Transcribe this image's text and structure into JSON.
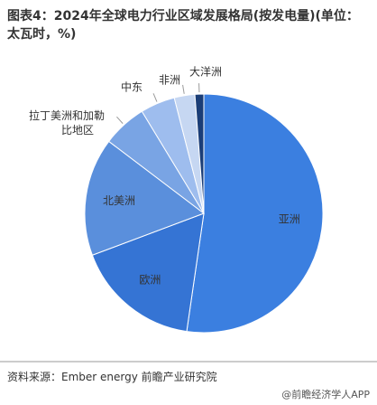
{
  "chart_data": {
    "type": "pie",
    "title": "图表4：2024年全球电力行业区域发展格局(按发电量)(单位：太瓦时，%)",
    "categories": [
      "亚洲",
      "欧洲",
      "北美洲",
      "拉丁美洲和加勒比地区",
      "中东",
      "非洲",
      "大洋洲"
    ],
    "values": [
      52.3,
      17,
      16,
      6,
      4.7,
      2.8,
      1.2
    ],
    "colors": [
      "#3b7fe0",
      "#3574d4",
      "#5a8fdc",
      "#79a4e4",
      "#9ebdee",
      "#c6d7f2",
      "#1b3e78"
    ],
    "source": "资料来源：Ember energy 前瞻产业研究院",
    "brand": "@前瞻经济学人APP"
  }
}
